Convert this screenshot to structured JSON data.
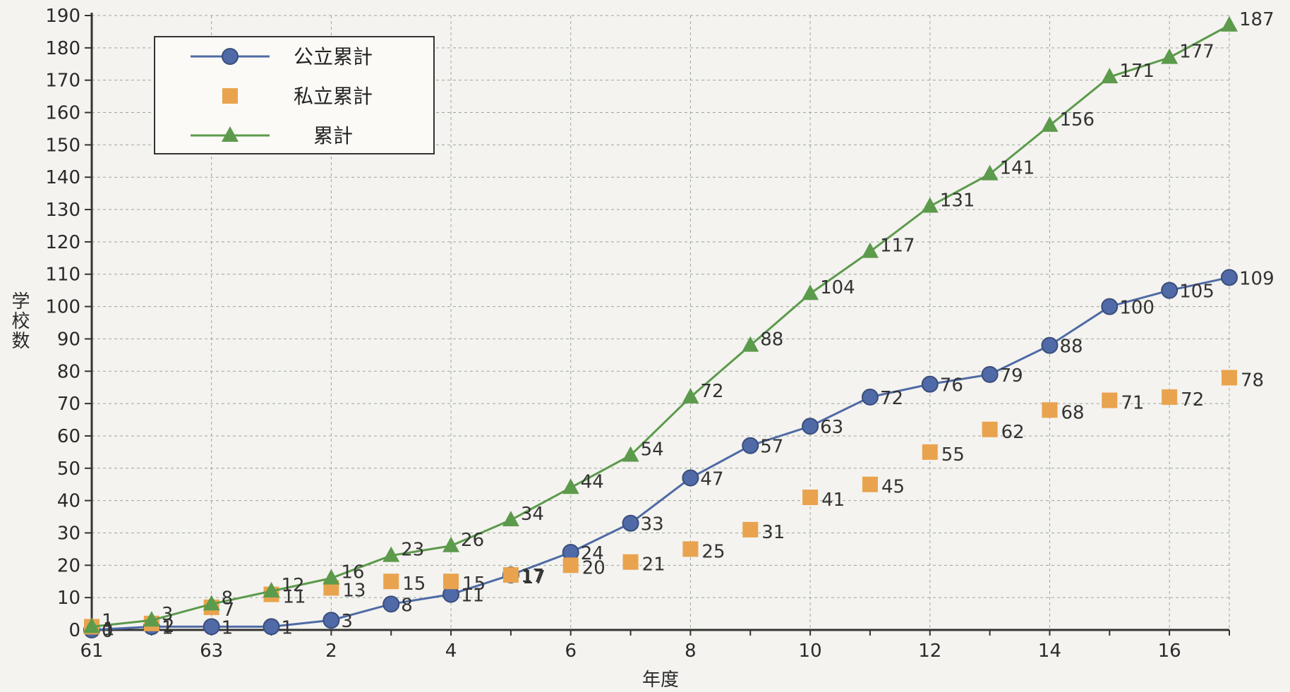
{
  "chart_data": {
    "type": "line",
    "xlabel": "年度",
    "ylabel": "学校数",
    "ylim": [
      0,
      190
    ],
    "ytick_step": 10,
    "grid": true,
    "legend_position": "top-left",
    "x_tick_labels": [
      "61",
      "63",
      "2",
      "4",
      "6",
      "8",
      "10",
      "12",
      "14",
      "16"
    ],
    "x_tick_positions": [
      61,
      63,
      65,
      67,
      69,
      71,
      73,
      75,
      77,
      79
    ],
    "x": [
      61,
      62,
      63,
      64,
      65,
      66,
      67,
      68,
      69,
      70,
      71,
      72,
      73,
      74,
      75,
      76,
      77,
      78,
      79,
      80
    ],
    "series": [
      {
        "name": "公立累計",
        "color": "#4f6aa6",
        "marker": "circle",
        "line": true,
        "values": [
          0,
          1,
          1,
          1,
          3,
          8,
          11,
          17,
          24,
          33,
          47,
          57,
          63,
          72,
          76,
          79,
          88,
          100,
          105,
          109
        ],
        "labels": [
          "0",
          "1",
          "1",
          "1",
          "3",
          "8",
          "11",
          "17",
          "24",
          "33",
          "47",
          "57",
          "63",
          "72",
          "76",
          "79",
          "88",
          "100",
          "105",
          "109"
        ]
      },
      {
        "name": "私立累計",
        "color": "#e9a34e",
        "marker": "square",
        "line": false,
        "values": [
          1,
          2,
          7,
          11,
          13,
          15,
          15,
          17,
          20,
          21,
          25,
          31,
          41,
          45,
          55,
          62,
          68,
          71,
          72,
          78
        ],
        "labels": [
          "1",
          "2",
          "7",
          "11",
          "13",
          "15",
          "15",
          "17",
          "20",
          "21",
          "25",
          "31",
          "41",
          "45",
          "55",
          "62",
          "68",
          "71",
          "72",
          "78"
        ]
      },
      {
        "name": "累計",
        "color": "#5c9a4c",
        "marker": "triangle",
        "line": true,
        "values": [
          1,
          3,
          8,
          12,
          16,
          23,
          26,
          34,
          44,
          54,
          72,
          88,
          104,
          117,
          131,
          141,
          156,
          171,
          177,
          187
        ],
        "labels": [
          "1",
          "3",
          "8",
          "12",
          "16",
          "23",
          "26",
          "34",
          "44",
          "54",
          "72",
          "88",
          "104",
          "117",
          "131",
          "141",
          "156",
          "171",
          "177",
          "187"
        ]
      }
    ]
  }
}
